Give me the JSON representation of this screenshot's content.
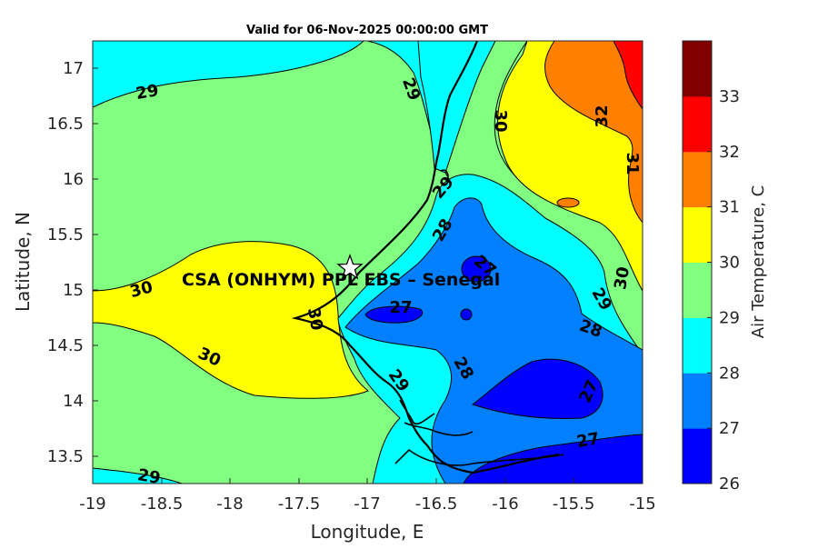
{
  "title": "Valid for 06-Nov-2025 00:00:00 GMT",
  "xlabel": "Longitude, E",
  "ylabel": "Latitude, N",
  "colorbar_label": "Air Temperature, C",
  "x_ticks": [
    "-19",
    "-18.5",
    "-18",
    "-17.5",
    "-17",
    "-16.5",
    "-16",
    "-15.5",
    "-15"
  ],
  "y_ticks": [
    "13.5",
    "14",
    "14.5",
    "15",
    "15.5",
    "16",
    "16.5",
    "17"
  ],
  "colorbar_ticks": [
    "26",
    "27",
    "28",
    "29",
    "30",
    "31",
    "32",
    "33"
  ],
  "colorbar_colors": [
    "#0000ff",
    "#0080ff",
    "#00ffff",
    "#80ff80",
    "#ffff00",
    "#ff8000",
    "#ff0000",
    "#800000"
  ],
  "station": {
    "name": "CSA (ONHYM) PPL EBS  – Senegal",
    "lon": -17.13,
    "lat": 15.23,
    "marker": "star-icon"
  },
  "map_data": {
    "type": "filled-contour",
    "lon_range": [
      -19,
      -15
    ],
    "lat_range": [
      13.25,
      17.25
    ],
    "levels": [
      26,
      27,
      28,
      29,
      30,
      31,
      32,
      33
    ],
    "contour_labels": [
      "29",
      "29",
      "30",
      "32",
      "31",
      "29",
      "30",
      "28",
      "27",
      "30",
      "27",
      "30",
      "30",
      "29",
      "28",
      "29",
      "28",
      "27",
      "27",
      "29"
    ]
  }
}
